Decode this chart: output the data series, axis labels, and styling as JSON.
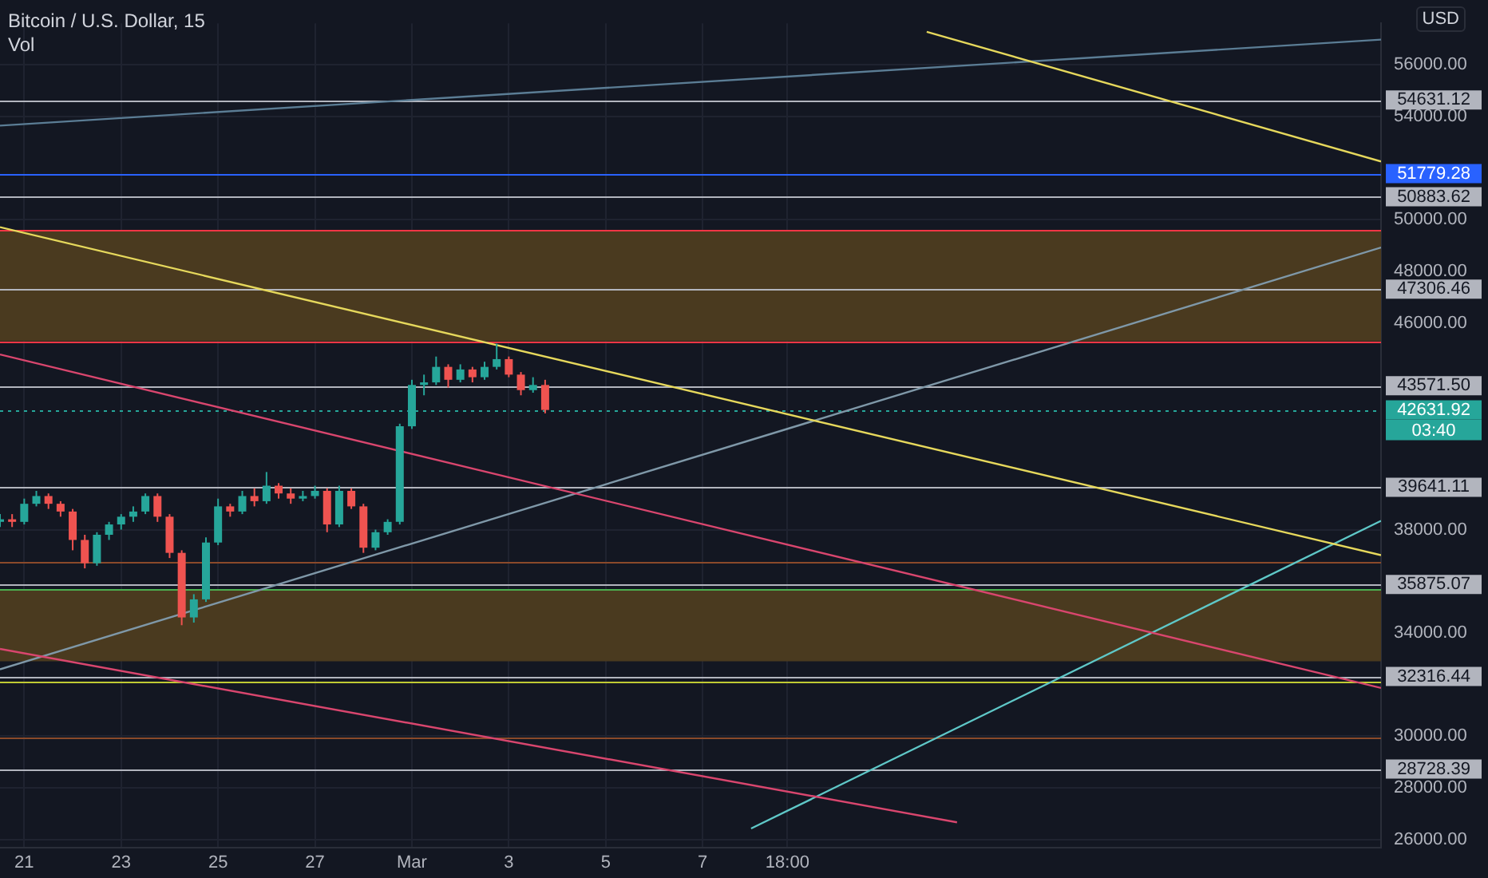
{
  "chart_data": {
    "type": "candlestick",
    "title": "Bitcoin / U.S. Dollar, 15",
    "ylabel": "USD",
    "annotations": [
      "Vol",
      {
        "text": "03:40",
        "x": "--03-21T00:00",
        "y": 42631.92
      }
    ],
    "xlim": [
      "--02-20T12:00",
      "--03-21T00:00"
    ],
    "xticks": [
      {
        "value": "--02-21T00:00",
        "label": "21"
      },
      {
        "value": "--02-23T00:00",
        "label": "23"
      },
      {
        "value": "--02-25T00:00",
        "label": "25"
      },
      {
        "value": "--02-27T00:00",
        "label": "27"
      },
      {
        "value": "--03-01T00:00",
        "label": "Mar"
      },
      {
        "value": "--03-03T00:00",
        "label": "3"
      },
      {
        "value": "--03-05T00:00",
        "label": "5"
      },
      {
        "value": "--03-07T00:00",
        "label": "7"
      },
      {
        "value": "--03-08T18:00",
        "label": "18:00"
      }
    ],
    "ylim": [
      25700,
      57600
    ],
    "yticks": [
      {
        "value": 26000,
        "label": "26000.00"
      },
      {
        "value": 28000,
        "label": "28000.00"
      },
      {
        "value": 30000,
        "label": "30000.00"
      },
      {
        "value": 34000,
        "label": "34000.00"
      },
      {
        "value": 38000,
        "label": "38000.00"
      },
      {
        "value": 46000,
        "label": "46000.00"
      },
      {
        "value": 48000,
        "label": "48000.00"
      },
      {
        "value": 50000,
        "label": "50000.00"
      },
      {
        "value": 54000,
        "label": "54000.00"
      },
      {
        "value": 56000,
        "label": "56000.00"
      }
    ],
    "grid": true,
    "legend": false,
    "series": [
      {
        "colors": [
          "#26a69a",
          "#ef5350",
          "#26a69a",
          "#26a69a",
          "#ef5350",
          "#ef5350",
          "#ef5350",
          "#ef5350",
          "#26a69a",
          "#26a69a",
          "#26a69a",
          "#26a69a",
          "#26a69a",
          "#ef5350",
          "#ef5350",
          "#ef5350",
          "#26a69a",
          "#26a69a",
          "#26a69a",
          "#ef5350",
          "#26a69a",
          "#ef5350",
          "#26a69a",
          "#ef5350",
          "#ef5350",
          "#26a69a",
          "#26a69a",
          "#ef5350",
          "#26a69a",
          "#ef5350",
          "#ef5350",
          "#26a69a",
          "#26a69a",
          "#26a69a",
          "#26a69a",
          "#26a69a",
          "#26a69a",
          "#ef5350",
          "#26a69a",
          "#ef5350",
          "#26a69a",
          "#26a69a",
          "#ef5350",
          "#ef5350",
          "#26a69a",
          "#ef5350"
        ],
        "x": [
          "--02-20T12:00",
          "--02-20T18:00",
          "--02-21T00:00",
          "--02-21T06:00",
          "--02-21T12:00",
          "--02-21T18:00",
          "--02-22T00:00",
          "--02-22T06:00",
          "--02-22T12:00",
          "--02-22T18:00",
          "--02-23T00:00",
          "--02-23T06:00",
          "--02-23T12:00",
          "--02-23T18:00",
          "--02-24T00:00",
          "--02-24T06:00",
          "--02-24T12:00",
          "--02-24T18:00",
          "--02-25T00:00",
          "--02-25T06:00",
          "--02-25T12:00",
          "--02-25T18:00",
          "--02-26T00:00",
          "--02-26T06:00",
          "--02-26T12:00",
          "--02-26T18:00",
          "--02-27T00:00",
          "--02-27T06:00",
          "--02-27T12:00",
          "--02-27T18:00",
          "--02-28T00:00",
          "--02-28T06:00",
          "--02-28T12:00",
          "--02-28T18:00",
          "--03-01T00:00",
          "--03-01T06:00",
          "--03-01T12:00",
          "--03-01T18:00",
          "--03-02T00:00",
          "--03-02T06:00",
          "--03-02T12:00",
          "--03-02T18:00",
          "--03-03T00:00",
          "--03-03T06:00",
          "--03-03T12:00",
          "--03-03T18:00"
        ],
        "ohlc": [
          [
            38300,
            38600,
            38100,
            38400
          ],
          [
            38400,
            38600,
            38100,
            38300
          ],
          [
            38300,
            39200,
            38200,
            39000
          ],
          [
            39000,
            39500,
            38900,
            39300
          ],
          [
            39300,
            39400,
            38800,
            39000
          ],
          [
            39000,
            39100,
            38500,
            38700
          ],
          [
            38700,
            38800,
            37200,
            37600
          ],
          [
            37600,
            37800,
            36500,
            36700
          ],
          [
            36700,
            37900,
            36600,
            37800
          ],
          [
            37800,
            38300,
            37600,
            38200
          ],
          [
            38200,
            38600,
            38000,
            38500
          ],
          [
            38500,
            38900,
            38300,
            38700
          ],
          [
            38700,
            39400,
            38600,
            39300
          ],
          [
            39300,
            39400,
            38300,
            38500
          ],
          [
            38500,
            38600,
            36900,
            37100
          ],
          [
            37100,
            37200,
            34300,
            34600
          ],
          [
            34600,
            35500,
            34400,
            35300
          ],
          [
            35300,
            37700,
            35200,
            37500
          ],
          [
            37500,
            39200,
            37400,
            38900
          ],
          [
            38900,
            39000,
            38500,
            38700
          ],
          [
            38700,
            39500,
            38600,
            39300
          ],
          [
            39300,
            39600,
            38900,
            39100
          ],
          [
            39100,
            40230,
            39000,
            39700
          ],
          [
            39700,
            39800,
            39200,
            39400
          ],
          [
            39400,
            39600,
            39000,
            39200
          ],
          [
            39200,
            39500,
            39100,
            39300
          ],
          [
            39300,
            39700,
            39200,
            39500
          ],
          [
            39500,
            39600,
            37900,
            38200
          ],
          [
            38200,
            39700,
            38100,
            39500
          ],
          [
            39500,
            39600,
            38800,
            38900
          ],
          [
            38900,
            39000,
            37100,
            37300
          ],
          [
            37300,
            38000,
            37200,
            37900
          ],
          [
            37900,
            38400,
            37800,
            38300
          ],
          [
            38300,
            42100,
            38200,
            42000
          ],
          [
            42000,
            43800,
            41900,
            43600
          ],
          [
            43600,
            44000,
            43200,
            43700
          ],
          [
            43700,
            44700,
            43600,
            44300
          ],
          [
            44300,
            44400,
            43500,
            43800
          ],
          [
            43800,
            44400,
            43700,
            44200
          ],
          [
            44200,
            44300,
            43700,
            43900
          ],
          [
            43900,
            44500,
            43800,
            44300
          ],
          [
            44300,
            45200,
            44200,
            44600
          ],
          [
            44600,
            44700,
            43900,
            44000
          ],
          [
            44000,
            44100,
            43200,
            43400
          ],
          [
            43400,
            43900,
            43300,
            43600
          ],
          [
            43600,
            43800,
            42500,
            42631.92
          ]
        ]
      },
      {
        "type": "line",
        "color": "#e6d85c",
        "x": [
          "--02-20T12:00",
          "--03-21T00:00"
        ],
        "values": [
          49710,
          37010
        ]
      },
      {
        "type": "line",
        "color": "#e6d85c",
        "x": [
          "--03-11T15:00",
          "--03-21T00:00"
        ],
        "values": [
          57270,
          52250
        ]
      },
      {
        "type": "line",
        "color": "#d9466e",
        "x": [
          "--02-20T12:00",
          "--03-21T00:00"
        ],
        "values": [
          44780,
          31870
        ]
      },
      {
        "type": "line",
        "color": "#d9466e",
        "x": [
          "--02-20T12:00",
          "--03-12T06:00"
        ],
        "values": [
          33380,
          26670
        ]
      },
      {
        "type": "line",
        "color": "#7f98a8",
        "x": [
          "--02-20T12:00",
          "--03-21T00:00"
        ],
        "values": [
          32590,
          48920
        ]
      },
      {
        "type": "line",
        "color": "#5b7d95",
        "x": [
          "--02-20T12:00",
          "--03-21T00:00"
        ],
        "values": [
          53640,
          56970
        ]
      },
      {
        "type": "line",
        "color": "#5fc8c8",
        "x": [
          "--03-08T00:00",
          "--03-21T00:00"
        ],
        "values": [
          26430,
          38340
        ]
      }
    ],
    "bands": [
      {
        "axis": "y",
        "from": 45295,
        "to": 49590,
        "color": "#4a3a1f"
      },
      {
        "axis": "y",
        "from": 32900,
        "to": 35680,
        "color": "#4a3a1f"
      }
    ],
    "ref_lines": [
      {
        "axis": "y",
        "value": 54631.12,
        "label": "54631.12",
        "color": "#b2b5be"
      },
      {
        "axis": "y",
        "value": 51779.28,
        "label": "51779.28",
        "color": "#2962ff"
      },
      {
        "axis": "y",
        "value": 50883.62,
        "label": "50883.62",
        "color": "#b2b5be"
      },
      {
        "axis": "y",
        "value": 49590,
        "label": null,
        "color": "#f23645"
      },
      {
        "axis": "y",
        "value": 47306.46,
        "label": "47306.46",
        "color": "#b2b5be"
      },
      {
        "axis": "y",
        "value": 45295,
        "label": null,
        "color": "#f23645"
      },
      {
        "axis": "y",
        "value": 43571.5,
        "label": "43571.50",
        "color": "#b2b5be"
      },
      {
        "axis": "y",
        "value": 42631.92,
        "label": "42631.92",
        "color": "#26a69a",
        "line_style": "dotted"
      },
      {
        "axis": "y",
        "value": 39641.11,
        "label": "39641.11",
        "color": "#b2b5be"
      },
      {
        "axis": "y",
        "value": 36770,
        "label": null,
        "color": "#8a4a2a"
      },
      {
        "axis": "y",
        "value": 35875.07,
        "label": "35875.07",
        "color": "#b2b5be"
      },
      {
        "axis": "y",
        "value": 35680,
        "label": null,
        "color": "#4caf50"
      },
      {
        "axis": "y",
        "value": 32316.44,
        "label": "32316.44",
        "color": "#b2b5be"
      },
      {
        "axis": "y",
        "value": 32100,
        "label": null,
        "color": "#c0ca33"
      },
      {
        "axis": "y",
        "value": 29950,
        "label": null,
        "color": "#8a4a2a"
      },
      {
        "axis": "y",
        "value": 28728.39,
        "label": "28728.39",
        "color": "#b2b5be"
      }
    ]
  }
}
